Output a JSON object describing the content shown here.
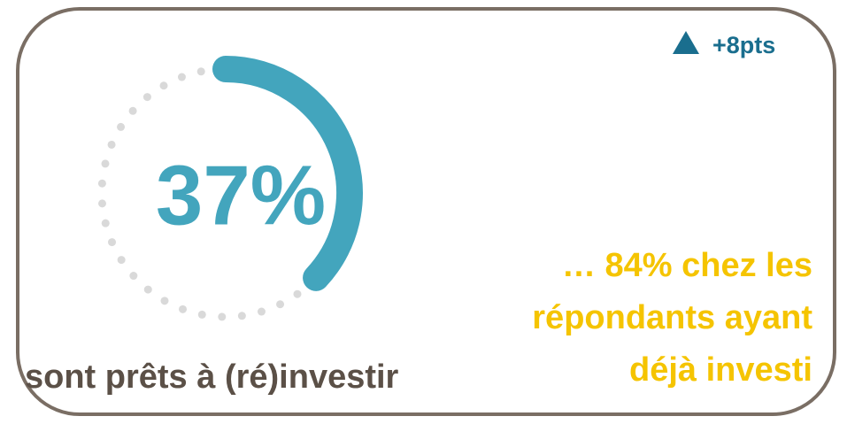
{
  "chart_data": {
    "type": "gauge",
    "values": [
      37
    ],
    "value_labels": [
      "37%"
    ],
    "ylim": [
      0,
      100
    ],
    "color": "#43a5bd",
    "track_color": "#d9d9d9",
    "label": "sont prêts à (ré)investir",
    "change": "+8pts",
    "annotation": [
      "… 84% chez les",
      "répondants ayant",
      "déjà investi"
    ]
  }
}
